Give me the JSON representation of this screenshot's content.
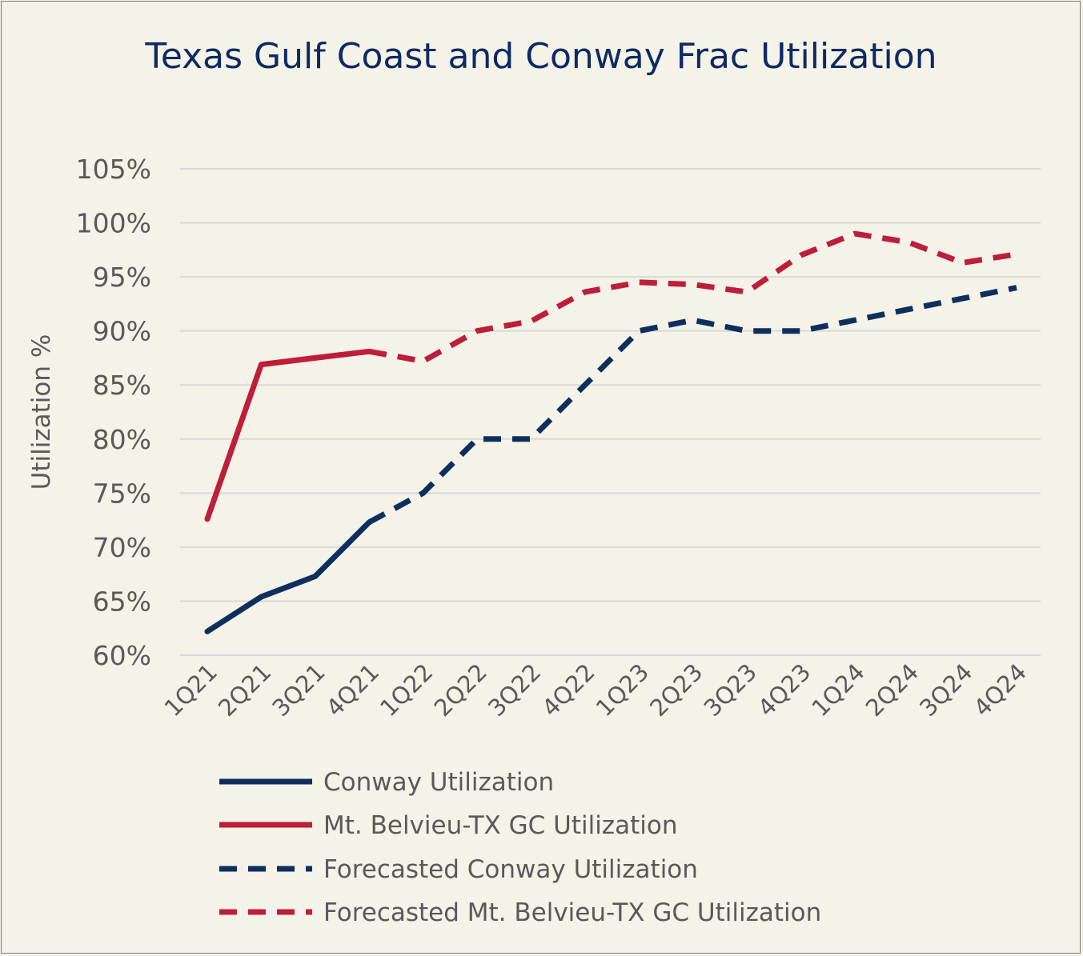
{
  "chart_data": {
    "type": "line",
    "title": "Texas Gulf Coast and Conway Frac Utilization",
    "xlabel": "",
    "ylabel": "Utilization %",
    "ylim": [
      60,
      105
    ],
    "yticks": [
      "60%",
      "65%",
      "70%",
      "75%",
      "80%",
      "85%",
      "90%",
      "95%",
      "100%",
      "105%"
    ],
    "ytick_values": [
      60,
      65,
      70,
      75,
      80,
      85,
      90,
      95,
      100,
      105
    ],
    "categories": [
      "1Q21",
      "2Q21",
      "3Q21",
      "4Q21",
      "1Q22",
      "2Q22",
      "3Q22",
      "4Q22",
      "1Q23",
      "2Q23",
      "3Q23",
      "4Q23",
      "1Q24",
      "2Q24",
      "3Q24",
      "4Q24"
    ],
    "grid": true,
    "legend_position": "bottom",
    "series": [
      {
        "name": "Conway Utilization",
        "color": "#0e2f5e",
        "style": "solid",
        "values": [
          62.2,
          65.4,
          67.3,
          72.3,
          null,
          null,
          null,
          null,
          null,
          null,
          null,
          null,
          null,
          null,
          null,
          null
        ]
      },
      {
        "name": "Mt. Belvieu-TX GC Utilization",
        "color": "#be1e3a",
        "style": "solid",
        "values": [
          72.6,
          86.9,
          87.5,
          88.1,
          null,
          null,
          null,
          null,
          null,
          null,
          null,
          null,
          null,
          null,
          null,
          null
        ]
      },
      {
        "name": "Forecasted Conway Utilization",
        "color": "#0e2f5e",
        "style": "dashed",
        "values": [
          null,
          null,
          null,
          72.3,
          75.0,
          80.0,
          80.0,
          85.0,
          90.0,
          91.0,
          90.0,
          90.0,
          91.0,
          92.0,
          93.0,
          94.0
        ]
      },
      {
        "name": "Forecasted Mt. Belvieu-TX GC Utilization",
        "color": "#be1e3a",
        "style": "dashed",
        "values": [
          null,
          null,
          null,
          88.1,
          87.2,
          90.0,
          90.9,
          93.6,
          94.5,
          94.3,
          93.6,
          97.0,
          99.0,
          98.2,
          96.3,
          97.1
        ]
      }
    ]
  }
}
